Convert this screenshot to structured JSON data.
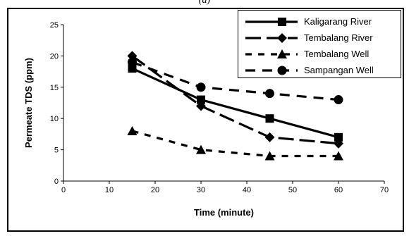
{
  "panel_label": "(a)",
  "chart_data": {
    "type": "line",
    "xlabel": "Time (minute)",
    "ylabel": "Permeate TDS (ppm)",
    "xlim": [
      0,
      70
    ],
    "ylim": [
      0,
      25
    ],
    "xticks": [
      "0",
      "10",
      "20",
      "30",
      "40",
      "50",
      "60",
      "70"
    ],
    "yticks": [
      "0",
      "5",
      "10",
      "15",
      "20",
      "25"
    ],
    "grid": false,
    "legend_placement": "top-right",
    "series": [
      {
        "name": "Kaligarang River",
        "marker": "square",
        "line": "solid",
        "x": [
          15,
          30,
          45,
          60
        ],
        "y": [
          18,
          13,
          10,
          7
        ]
      },
      {
        "name": "Tembalang River",
        "marker": "diamond",
        "line": "long-dash",
        "x": [
          15,
          30,
          45,
          60
        ],
        "y": [
          20,
          12,
          7,
          6
        ]
      },
      {
        "name": "Tembalang Well",
        "marker": "triangle",
        "line": "short-dash",
        "x": [
          15,
          30,
          45,
          60
        ],
        "y": [
          8,
          5,
          4,
          4
        ]
      },
      {
        "name": "Sampangan Well",
        "marker": "circle",
        "line": "dash",
        "x": [
          15,
          30,
          45,
          60
        ],
        "y": [
          19,
          15,
          14,
          13
        ]
      }
    ],
    "colors": {
      "series": "#000000",
      "axis": "#000000"
    }
  }
}
